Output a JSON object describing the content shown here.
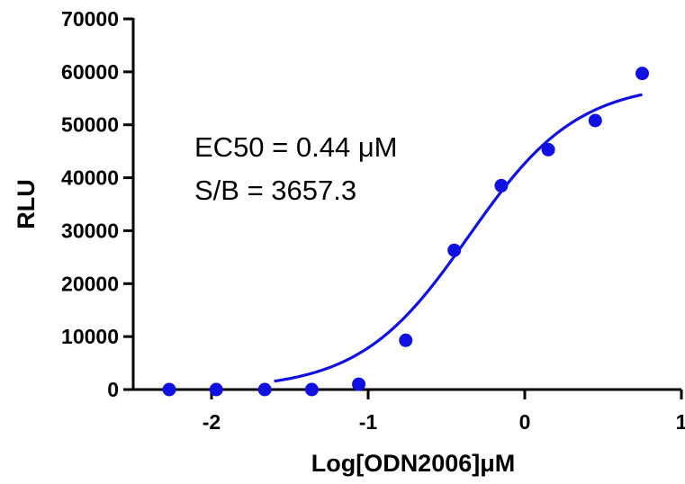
{
  "chart_data": {
    "type": "scatter",
    "xlabel": "Log[ODN2006]μM",
    "ylabel": "RLU",
    "xlim": [
      -2.5,
      1
    ],
    "ylim": [
      0,
      70000
    ],
    "x_ticks": [
      -2,
      -1,
      0,
      1
    ],
    "y_ticks": [
      0,
      10000,
      20000,
      30000,
      40000,
      50000,
      60000,
      70000
    ],
    "x_tick_labels": [
      "-2",
      "-1",
      "0",
      "1"
    ],
    "y_tick_labels": [
      "0",
      "10000",
      "20000",
      "30000",
      "40000",
      "50000",
      "60000",
      "70000"
    ],
    "series": [
      {
        "type": "scatter",
        "color": "#1010e0",
        "x": [
          -2.27,
          -1.97,
          -1.66,
          -1.36,
          -1.06,
          -0.76,
          -0.45,
          -0.15,
          0.15,
          0.45,
          0.75
        ],
        "y": [
          0,
          0,
          0,
          0,
          1000,
          9300,
          26300,
          38500,
          45300,
          50800,
          59700
        ]
      },
      {
        "type": "line",
        "color": "#1010e0",
        "fit": "four-parameter logistic",
        "bottom": 0,
        "top": 58000,
        "log_ec50": -0.357,
        "hill_slope": 1.25,
        "x_range": [
          -1.6,
          0.75
        ]
      }
    ],
    "annotations": [
      "EC50 = 0.44 μM",
      "S/B = 3657.3"
    ],
    "grid": false,
    "legend": "none"
  }
}
